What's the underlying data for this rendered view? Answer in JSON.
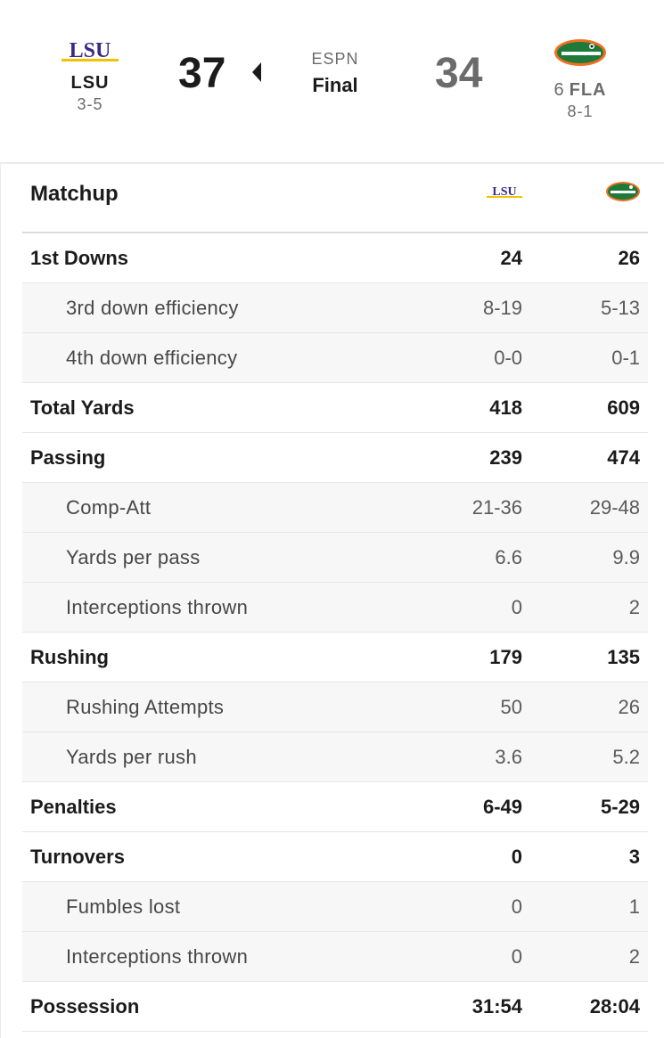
{
  "game": {
    "away": {
      "logo_text": "LSU",
      "abbr": "LSU",
      "record": "3-5",
      "score": "37",
      "logo_color": "#3a2a86",
      "logo_accent": "#f2c200"
    },
    "home": {
      "rank": "6",
      "abbr": "FLA",
      "record": "8-1",
      "score": "34",
      "logo_color": "#1f7a3a",
      "logo_accent": "#f36f21"
    },
    "network": "ESPN",
    "status": "Final",
    "winner_indicator_icon": "caret-left-icon"
  },
  "matchup": {
    "title": "Matchup",
    "away_logo_text": "LSU",
    "rows": [
      {
        "type": "main",
        "label": "1st Downs",
        "away": "24",
        "home": "26"
      },
      {
        "type": "sub",
        "label": "3rd down efficiency",
        "away": "8-19",
        "home": "5-13"
      },
      {
        "type": "sub",
        "label": "4th down efficiency",
        "away": "0-0",
        "home": "0-1"
      },
      {
        "type": "main",
        "label": "Total Yards",
        "away": "418",
        "home": "609"
      },
      {
        "type": "main",
        "label": "Passing",
        "away": "239",
        "home": "474"
      },
      {
        "type": "sub",
        "label": "Comp-Att",
        "away": "21-36",
        "home": "29-48"
      },
      {
        "type": "sub",
        "label": "Yards per pass",
        "away": "6.6",
        "home": "9.9"
      },
      {
        "type": "sub",
        "label": "Interceptions thrown",
        "away": "0",
        "home": "2"
      },
      {
        "type": "main",
        "label": "Rushing",
        "away": "179",
        "home": "135"
      },
      {
        "type": "sub",
        "label": "Rushing Attempts",
        "away": "50",
        "home": "26"
      },
      {
        "type": "sub",
        "label": "Yards per rush",
        "away": "3.6",
        "home": "5.2"
      },
      {
        "type": "main",
        "label": "Penalties",
        "away": "6-49",
        "home": "5-29"
      },
      {
        "type": "main",
        "label": "Turnovers",
        "away": "0",
        "home": "3"
      },
      {
        "type": "sub",
        "label": "Fumbles lost",
        "away": "0",
        "home": "1"
      },
      {
        "type": "sub",
        "label": "Interceptions thrown",
        "away": "0",
        "home": "2"
      },
      {
        "type": "main",
        "label": "Possession",
        "away": "31:54",
        "home": "28:04"
      }
    ]
  }
}
